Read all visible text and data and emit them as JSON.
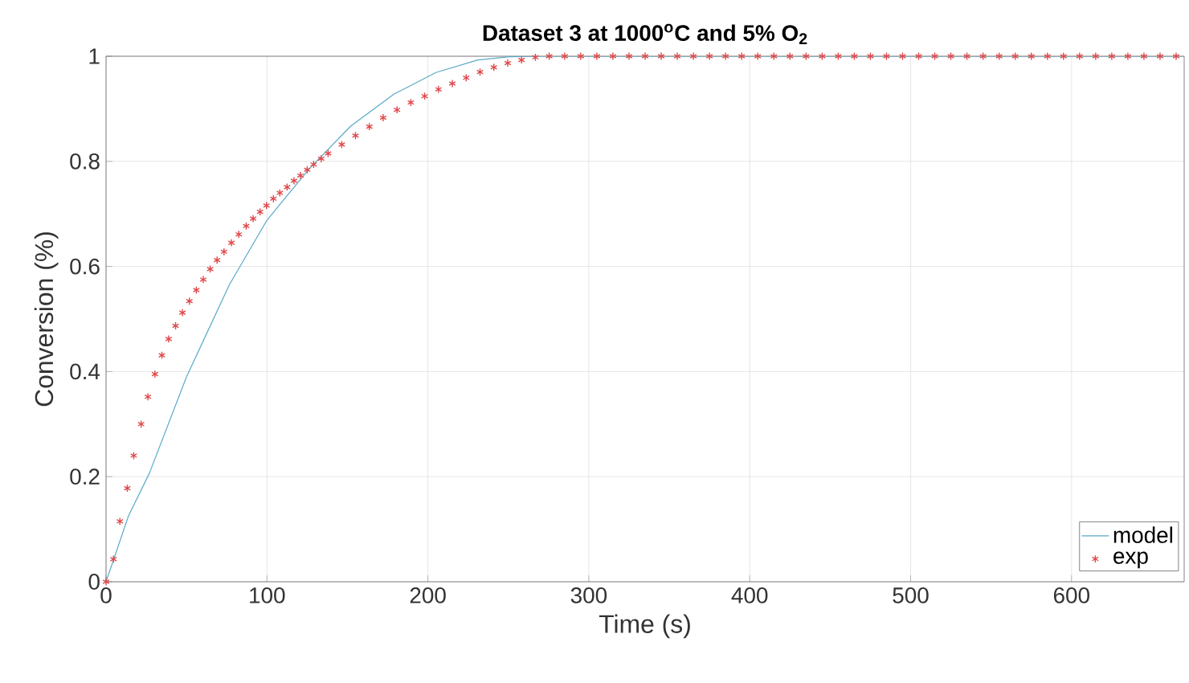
{
  "chart_data": {
    "type": "line",
    "title": "Dataset 3 at 1000$^{o}$C and 5% O$_{2}$",
    "xlabel": "Time (s)",
    "ylabel": "Conversion (%)",
    "xlim": [
      0,
      670
    ],
    "xticks": [
      0,
      100,
      200,
      300,
      400,
      500,
      600
    ],
    "ylim": [
      0,
      1
    ],
    "yticks": [
      0,
      0.2,
      0.4,
      0.6,
      0.8,
      1
    ],
    "grid": true,
    "legend": "bottom right",
    "series": [
      {
        "name": "model",
        "type": "line",
        "color": "#5aa9c8",
        "marker": "none",
        "x": [
          0,
          13.9,
          27,
          50,
          76.6,
          100,
          126,
          152,
          179,
          205,
          231,
          251,
          270,
          400,
          670
        ],
        "values": [
          0,
          0.125,
          0.207,
          0.39,
          0.565,
          0.688,
          0.785,
          0.867,
          0.928,
          0.969,
          0.993,
          0.999,
          1,
          1,
          1
        ]
      },
      {
        "name": "exp",
        "type": "scatter",
        "color": "#e0474a",
        "marker": "cross",
        "x": [
          0,
          4.6,
          8.6,
          13.2,
          17.2,
          21.8,
          26,
          30.4,
          34.7,
          38.9,
          43.2,
          47.5,
          51.8,
          56.1,
          60.4,
          64.7,
          69,
          73.3,
          77.9,
          82.5,
          87.1,
          91.4,
          95.7,
          99.7,
          104,
          108,
          112.5,
          116.8,
          120.8,
          125,
          129,
          133.7,
          138,
          146.5,
          155,
          163.6,
          172.2,
          180.8,
          189.4,
          198,
          206.6,
          215.2,
          223.8,
          232.4,
          241,
          249.6,
          258.2,
          266.8,
          275.4,
          285,
          295,
          305,
          315,
          325,
          335,
          345,
          355,
          365,
          375,
          385,
          395,
          405,
          415,
          425,
          435,
          445,
          455,
          465,
          475,
          485,
          495,
          505,
          515,
          525,
          535,
          545,
          555,
          565,
          575,
          585,
          595,
          605,
          615,
          625,
          635,
          645,
          655,
          665
        ],
        "values": [
          0,
          0.043,
          0.115,
          0.178,
          0.24,
          0.3,
          0.352,
          0.395,
          0.431,
          0.462,
          0.487,
          0.512,
          0.534,
          0.555,
          0.575,
          0.595,
          0.612,
          0.628,
          0.645,
          0.661,
          0.677,
          0.691,
          0.704,
          0.716,
          0.729,
          0.74,
          0.751,
          0.763,
          0.773,
          0.784,
          0.794,
          0.805,
          0.815,
          0.832,
          0.849,
          0.866,
          0.883,
          0.898,
          0.912,
          0.924,
          0.937,
          0.948,
          0.959,
          0.97,
          0.979,
          0.987,
          0.993,
          0.998,
          1,
          1,
          1,
          1,
          1,
          1,
          1,
          1,
          1,
          1,
          1,
          1,
          1,
          1,
          1,
          1,
          1,
          1,
          1,
          1,
          1,
          1,
          1,
          1,
          1,
          1,
          1,
          1,
          1,
          1,
          1,
          1,
          1,
          1,
          1,
          1,
          1,
          1,
          1,
          1
        ]
      }
    ]
  }
}
